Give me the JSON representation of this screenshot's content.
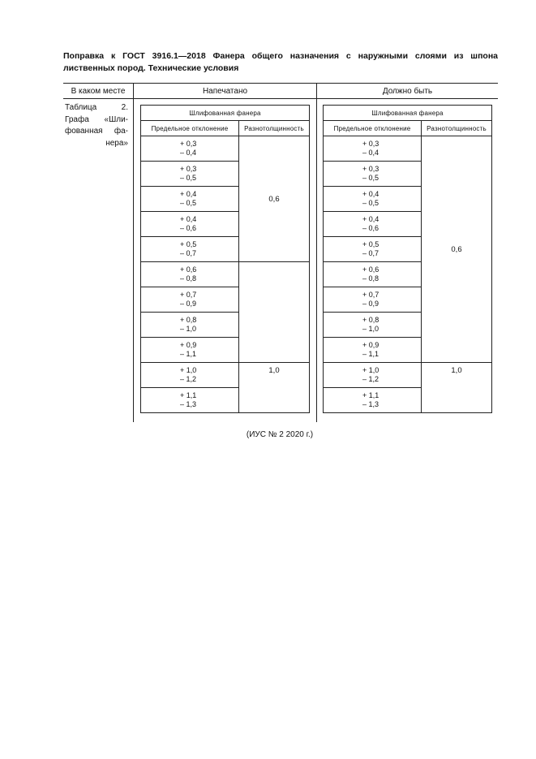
{
  "title": "Поправка к ГОСТ 3916.1—2018 Фанера общего назначения с наружными слоями из шпона лиственных пород. Технические условия",
  "headers": {
    "where": "В каком месте",
    "printed": "Напечатано",
    "should_be": "Должно быть"
  },
  "place": "Таблица 2. Графа «Шли-фованная фа-нера»",
  "inner": {
    "group": "Шлифованная фанера",
    "col1": "Предельное отклонение",
    "col2": "Разнотолщинность"
  },
  "rows": [
    {
      "plus": "+ 0,3",
      "minus": "– 0,4"
    },
    {
      "plus": "+ 0,3",
      "minus": "– 0,5"
    },
    {
      "plus": "+ 0,4",
      "minus": "– 0,5"
    },
    {
      "plus": "+ 0,4",
      "minus": "– 0,6"
    },
    {
      "plus": "+ 0,5",
      "minus": "– 0,7"
    },
    {
      "plus": "+ 0,6",
      "minus": "– 0,8"
    },
    {
      "plus": "+ 0,7",
      "minus": "– 0,9"
    },
    {
      "plus": "+ 0,8",
      "minus": "– 1,0"
    },
    {
      "plus": "+ 0,9",
      "minus": "– 1,1"
    },
    {
      "plus": "+ 1,0",
      "minus": "– 1,2"
    },
    {
      "plus": "+ 1,1",
      "minus": "– 1,3"
    }
  ],
  "printed_values": {
    "group1": "0,6",
    "group3": "1,0"
  },
  "correct_values": {
    "group1": "0,6",
    "group2": "1,0"
  },
  "footer": "(ИУС № 2  2020 г.)"
}
